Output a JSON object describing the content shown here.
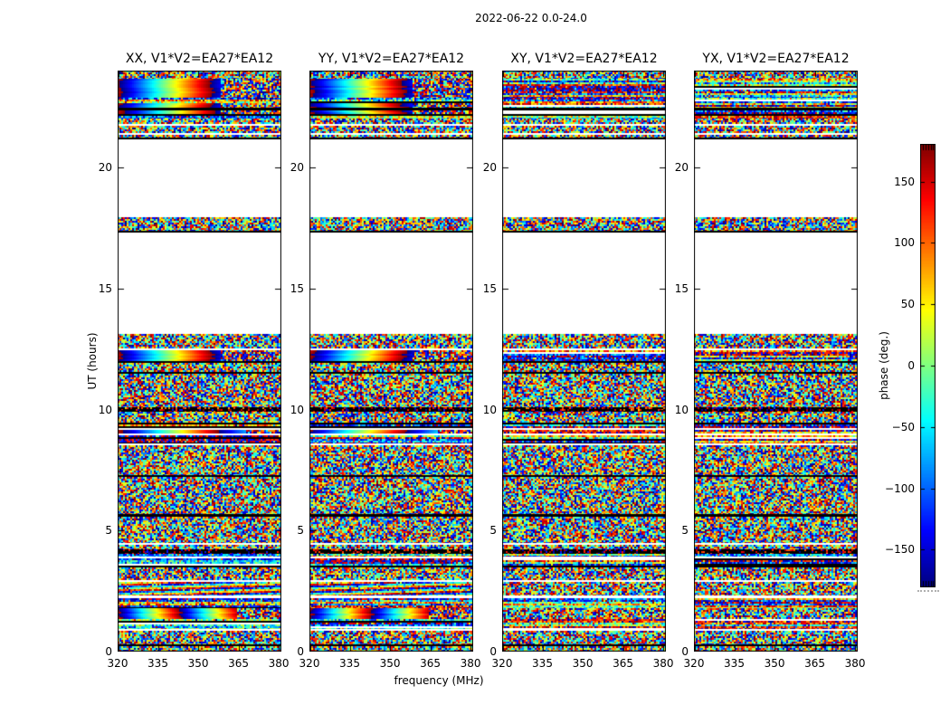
{
  "chart_data": {
    "type": "heatmap",
    "title": "2022-06-22 0.0-24.0",
    "xlabel": "frequency (MHz)",
    "ylabel": "UT (hours)",
    "x_range": [
      320,
      381
    ],
    "y_range": [
      0,
      24
    ],
    "xticks": [
      320,
      335,
      350,
      365,
      380
    ],
    "yticks": [
      0,
      5,
      10,
      15,
      20
    ],
    "grid": false,
    "colorbar": {
      "label": "phase (deg.)",
      "min": -180,
      "max": 180,
      "colormap": "jet",
      "ticks": [
        150,
        100,
        50,
        0,
        -50,
        -100,
        -150
      ],
      "tick_labels": [
        "150",
        "100",
        "50",
        "0",
        "−50",
        "−100",
        "−150"
      ]
    },
    "panels": [
      {
        "label": "XX, V1*V2=EA27*EA12",
        "pol": "XX",
        "kind": "parallel",
        "seed": 7
      },
      {
        "label": "YY, V1*V2=EA27*EA12",
        "pol": "YY",
        "kind": "parallel",
        "seed": 13
      },
      {
        "label": "XY, V1*V2=EA27*EA12",
        "pol": "XY",
        "kind": "cross",
        "seed": 29
      },
      {
        "label": "YX, V1*V2=EA27*EA12",
        "pol": "YX",
        "kind": "cross",
        "seed": 41
      }
    ],
    "bands": [
      [
        24.0,
        23.66,
        "noise",
        "noise"
      ],
      [
        23.66,
        22.88,
        "smooth",
        "streak"
      ],
      [
        22.88,
        22.65,
        "streak",
        "streak"
      ],
      [
        22.65,
        22.47,
        "smooth",
        "streak"
      ],
      [
        22.47,
        22.36,
        "black",
        "black"
      ],
      [
        22.36,
        22.21,
        "smooth",
        "streak"
      ],
      [
        22.21,
        22.13,
        "black",
        "black"
      ],
      [
        22.13,
        22.02,
        "streak",
        "streak"
      ],
      [
        22.02,
        21.79,
        "noise",
        "noise"
      ],
      [
        21.79,
        21.72,
        "white",
        "white"
      ],
      [
        21.72,
        21.42,
        "noise",
        "noise"
      ],
      [
        21.42,
        21.35,
        "white",
        "white"
      ],
      [
        21.35,
        21.23,
        "noise",
        "noise"
      ],
      [
        21.23,
        21.16,
        "black",
        "black"
      ],
      [
        21.16,
        17.94,
        "white",
        "white"
      ],
      [
        17.94,
        17.38,
        "noise",
        "noise"
      ],
      [
        17.38,
        17.31,
        "black",
        "black"
      ],
      [
        17.31,
        13.12,
        "white",
        "white"
      ],
      [
        13.12,
        12.52,
        "noise",
        "noise"
      ],
      [
        12.52,
        12.45,
        "white",
        "white"
      ],
      [
        12.45,
        12.0,
        "smooth",
        "streak"
      ],
      [
        12.0,
        11.93,
        "black",
        "black"
      ],
      [
        11.93,
        11.55,
        "noise",
        "noise"
      ],
      [
        11.55,
        11.48,
        "black",
        "black"
      ],
      [
        11.48,
        10.09,
        "noise",
        "noise"
      ],
      [
        10.09,
        9.91,
        "dark",
        "dark"
      ],
      [
        9.91,
        9.46,
        "noise",
        "noise"
      ],
      [
        9.46,
        9.38,
        "black",
        "black"
      ],
      [
        9.38,
        9.23,
        "streak",
        "streak"
      ],
      [
        9.23,
        9.16,
        "white",
        "white"
      ],
      [
        9.16,
        9.01,
        "smoothline",
        "streak"
      ],
      [
        9.01,
        8.93,
        "white",
        "white"
      ],
      [
        8.93,
        8.6,
        "streak",
        "streak"
      ],
      [
        8.6,
        8.52,
        "white",
        "white"
      ],
      [
        8.52,
        7.29,
        "noise",
        "noise"
      ],
      [
        7.29,
        7.21,
        "black",
        "black"
      ],
      [
        7.21,
        5.68,
        "noise",
        "noise"
      ],
      [
        5.68,
        5.57,
        "black",
        "black"
      ],
      [
        5.57,
        4.49,
        "noise",
        "noise"
      ],
      [
        4.49,
        4.41,
        "white",
        "white"
      ],
      [
        4.41,
        4.22,
        "noise",
        "noise"
      ],
      [
        4.22,
        4.04,
        "dark",
        "dark"
      ],
      [
        4.04,
        3.93,
        "streak",
        "streak"
      ],
      [
        3.93,
        3.85,
        "white",
        "white"
      ],
      [
        3.85,
        3.55,
        "streak",
        "streak"
      ],
      [
        3.55,
        3.48,
        "black",
        "black"
      ],
      [
        3.48,
        2.95,
        "noise",
        "noise"
      ],
      [
        2.95,
        2.88,
        "white",
        "white"
      ],
      [
        2.88,
        2.32,
        "diag",
        "noise"
      ],
      [
        2.32,
        2.21,
        "white",
        "white"
      ],
      [
        2.21,
        1.79,
        "streak",
        "streak"
      ],
      [
        1.79,
        1.35,
        "smooth2",
        "noise"
      ],
      [
        1.35,
        0.93,
        "streak",
        "streak"
      ],
      [
        0.93,
        0.86,
        "white",
        "white"
      ],
      [
        0.86,
        0.3,
        "noise",
        "noise"
      ],
      [
        0.3,
        0.22,
        "black",
        "black"
      ],
      [
        0.22,
        0.0,
        "noise",
        "noise"
      ]
    ]
  }
}
